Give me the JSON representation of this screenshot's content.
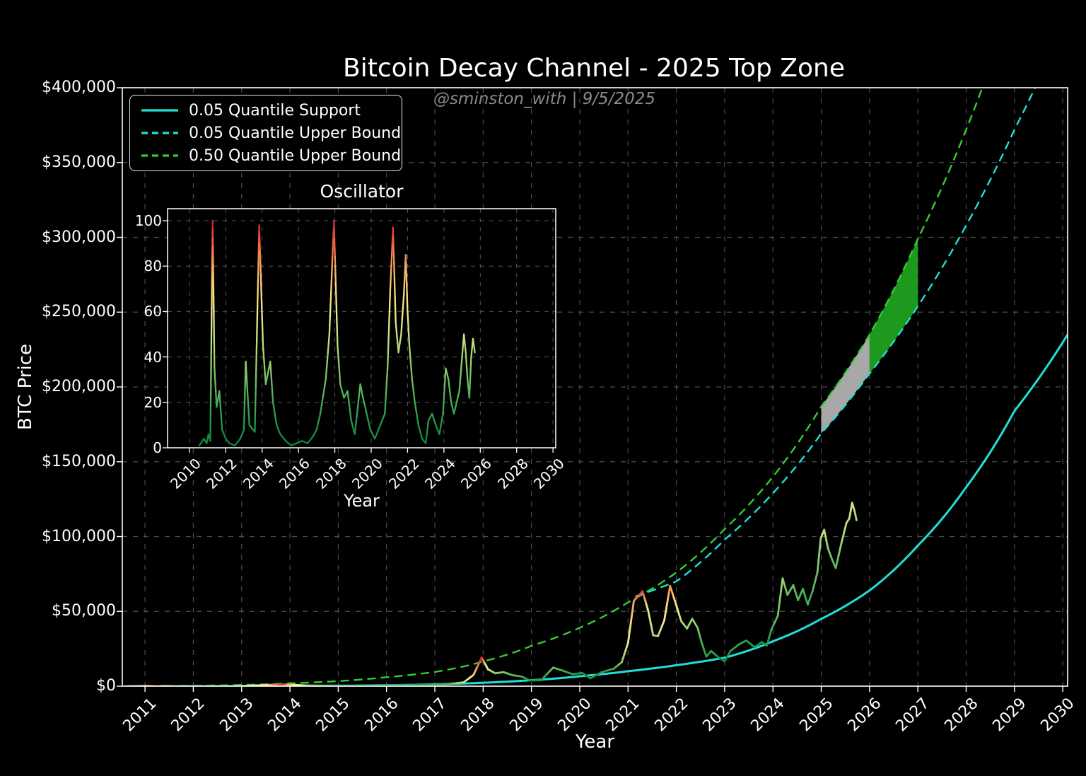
{
  "title": "Bitcoin Decay Channel - 2025 Top Zone",
  "watermark": "@sminston_with  |  9/5/2025",
  "legend": {
    "items": [
      {
        "label": "0.05 Quantile Support",
        "color": "#21dfda",
        "style": "solid"
      },
      {
        "label": "0.05 Quantile Upper Bound",
        "color": "#21dfda",
        "style": "dashed"
      },
      {
        "label": "0.50 Quantile Upper Bound",
        "color": "#33cd33",
        "style": "dashed"
      }
    ]
  },
  "colors": {
    "background": "#000000",
    "axis": "#ffffff",
    "grid": "#9b9b9b",
    "text": "#ffffff",
    "watermark_text": "#8a8a8a",
    "zone_elapsed_gray": "#a8a8a8",
    "zone_projected_green": "#1d9a1d"
  },
  "chart_data": {
    "main_chart": {
      "type": "line",
      "title": "Bitcoin Decay Channel - 2025 Top Zone",
      "xlabel": "Year",
      "ylabel": "BTC Price",
      "xlim": [
        2010.53,
        2030.1
      ],
      "ylim": [
        0,
        400000
      ],
      "grid": true,
      "x_ticks": [
        2011,
        2012,
        2013,
        2014,
        2015,
        2016,
        2017,
        2018,
        2019,
        2020,
        2021,
        2022,
        2023,
        2024,
        2025,
        2026,
        2027,
        2028,
        2029,
        2030
      ],
      "y_ticks": [
        {
          "value": 0,
          "label": "$0"
        },
        {
          "value": 50000,
          "label": "$50,000"
        },
        {
          "value": 100000,
          "label": "$100,000"
        },
        {
          "value": 150000,
          "label": "$150,000"
        },
        {
          "value": 200000,
          "label": "$200,000"
        },
        {
          "value": 250000,
          "label": "$250,000"
        },
        {
          "value": 300000,
          "label": "$300,000"
        },
        {
          "value": 350000,
          "label": "$350,000"
        },
        {
          "value": 400000,
          "label": "$400,000"
        }
      ],
      "value_unit": "USD thousands",
      "series": [
        {
          "name": "0.05 Quantile Support",
          "style": "solid",
          "color": "#21dfda",
          "width": 3,
          "points_year_usdK": [
            [
              2010.6,
              0.004
            ],
            [
              2011,
              0.008
            ],
            [
              2012,
              0.025
            ],
            [
              2013,
              0.07
            ],
            [
              2014,
              0.16
            ],
            [
              2015,
              0.32
            ],
            [
              2016,
              0.62
            ],
            [
              2017,
              1.2
            ],
            [
              2018,
              2.3
            ],
            [
              2019,
              4.0
            ],
            [
              2020,
              6.6
            ],
            [
              2021,
              10.0
            ],
            [
              2022,
              14.0
            ],
            [
              2023,
              19.0
            ],
            [
              2024,
              30.0
            ],
            [
              2025,
              45.0
            ],
            [
              2026,
              64.0
            ],
            [
              2027,
              94.0
            ],
            [
              2028,
              133.0
            ],
            [
              2029,
              184.0
            ],
            [
              2030.1,
              235.0
            ]
          ]
        },
        {
          "name": "0.05 Quantile Upper Bound",
          "style": "dashed",
          "color": "#21dfda",
          "width": 2.4,
          "points_year_usdK": [
            [
              2021.15,
              60.0
            ],
            [
              2022,
              70.0
            ],
            [
              2023,
              98.0
            ],
            [
              2024,
              129.0
            ],
            [
              2025,
              169.0
            ],
            [
              2026,
              209.0
            ],
            [
              2027,
              254.0
            ],
            [
              2028,
              308.0
            ],
            [
              2029,
              372.0
            ],
            [
              2029.6,
              412.0
            ]
          ]
        },
        {
          "name": "0.50 Quantile Upper Bound",
          "style": "dashed",
          "color": "#33cd33",
          "width": 2.4,
          "points_year_usdK": [
            [
              2010.6,
              0.06
            ],
            [
              2011,
              0.09
            ],
            [
              2012,
              0.3
            ],
            [
              2013,
              0.85
            ],
            [
              2014,
              1.9
            ],
            [
              2015,
              3.4
            ],
            [
              2016,
              6.0
            ],
            [
              2017,
              9.5
            ],
            [
              2018,
              16.5
            ],
            [
              2019,
              27.0
            ],
            [
              2020,
              39.0
            ],
            [
              2021,
              56.0
            ],
            [
              2022,
              76.0
            ],
            [
              2023,
              105.0
            ],
            [
              2024,
              140.0
            ],
            [
              2025,
              187.0
            ],
            [
              2026,
              235.0
            ],
            [
              2027,
              299.0
            ],
            [
              2028,
              372.0
            ],
            [
              2028.45,
              410.0
            ]
          ]
        },
        {
          "name": "BTC Price",
          "style": "gradient-colormap",
          "width": 2.8,
          "points_year_usdK_osc": [
            [
              2010.6,
              0.01,
              3
            ],
            [
              2011.28,
              0.03,
              100
            ],
            [
              2011.6,
              0.01,
              15
            ],
            [
              2012.5,
              0.01,
              3
            ],
            [
              2013.1,
              0.2,
              38
            ],
            [
              2013.84,
              1.15,
              98
            ],
            [
              2014.4,
              0.45,
              30
            ],
            [
              2015.2,
              0.25,
              5
            ],
            [
              2016.0,
              0.43,
              6
            ],
            [
              2016.7,
              0.68,
              12
            ],
            [
              2017.2,
              1.1,
              22
            ],
            [
              2017.6,
              2.6,
              45
            ],
            [
              2017.8,
              7.5,
              70
            ],
            [
              2017.97,
              19.2,
              100
            ],
            [
              2018.1,
              11.3,
              55
            ],
            [
              2018.25,
              8.6,
              38
            ],
            [
              2018.42,
              9.4,
              35
            ],
            [
              2018.6,
              7.4,
              28
            ],
            [
              2018.8,
              6.4,
              22
            ],
            [
              2018.97,
              3.8,
              10
            ],
            [
              2019.2,
              4.0,
              10
            ],
            [
              2019.45,
              12.4,
              28
            ],
            [
              2019.62,
              10.7,
              22
            ],
            [
              2019.85,
              8.0,
              14
            ],
            [
              2020.05,
              8.8,
              12
            ],
            [
              2020.22,
              5.2,
              6
            ],
            [
              2020.45,
              9.3,
              12
            ],
            [
              2020.7,
              11.6,
              18
            ],
            [
              2020.87,
              16.0,
              32
            ],
            [
              2021.0,
              29.0,
              55
            ],
            [
              2021.12,
              57.0,
              82
            ],
            [
              2021.3,
              63.5,
              97
            ],
            [
              2021.42,
              50.0,
              58
            ],
            [
              2021.52,
              34.0,
              44
            ],
            [
              2021.62,
              33.5,
              45
            ],
            [
              2021.75,
              44.0,
              58
            ],
            [
              2021.87,
              67.0,
              85
            ],
            [
              2021.97,
              57.0,
              68
            ],
            [
              2022.1,
              43.5,
              46
            ],
            [
              2022.22,
              38.5,
              38
            ],
            [
              2022.33,
              45.0,
              42
            ],
            [
              2022.44,
              39.0,
              33
            ],
            [
              2022.52,
              29.5,
              22
            ],
            [
              2022.62,
              19.8,
              13
            ],
            [
              2022.72,
              23.5,
              17
            ],
            [
              2022.87,
              19.3,
              11
            ],
            [
              2023.0,
              16.6,
              4
            ],
            [
              2023.12,
              23.5,
              14
            ],
            [
              2023.3,
              28.0,
              17
            ],
            [
              2023.45,
              30.5,
              15
            ],
            [
              2023.62,
              26.0,
              11
            ],
            [
              2023.77,
              29.5,
              12
            ],
            [
              2023.87,
              27.0,
              9
            ],
            [
              2023.97,
              38.0,
              18
            ],
            [
              2024.1,
              47.0,
              28
            ],
            [
              2024.2,
              72.0,
              40
            ],
            [
              2024.3,
              61.0,
              27
            ],
            [
              2024.42,
              67.5,
              30
            ],
            [
              2024.52,
              57.5,
              21
            ],
            [
              2024.62,
              65.0,
              24
            ],
            [
              2024.72,
              54.5,
              17
            ],
            [
              2024.82,
              63.5,
              22
            ],
            [
              2024.92,
              76.0,
              30
            ],
            [
              2024.99,
              99.0,
              42
            ],
            [
              2025.06,
              104.5,
              48
            ],
            [
              2025.14,
              92.0,
              36
            ],
            [
              2025.22,
              85.0,
              29
            ],
            [
              2025.3,
              79.0,
              24
            ],
            [
              2025.42,
              96.0,
              40
            ],
            [
              2025.52,
              109.0,
              47
            ],
            [
              2025.58,
              112.0,
              49
            ],
            [
              2025.64,
              122.5,
              52
            ],
            [
              2025.69,
              117.0,
              46
            ],
            [
              2025.73,
              111.0,
              43
            ]
          ]
        }
      ],
      "zones": [
        {
          "name": "2025 top zone - elapsed",
          "from_year": 2025,
          "to_year": 2026,
          "upper_series": "0.50 Quantile Upper Bound",
          "lower_series": "0.05 Quantile Upper Bound",
          "color": "#a8a8a8"
        },
        {
          "name": "2025 top zone - projected",
          "from_year": 2026,
          "to_year": 2027,
          "upper_series": "0.50 Quantile Upper Bound",
          "lower_series": "0.05 Quantile Upper Bound",
          "color": "#1d9a1d"
        }
      ],
      "colormap_rdylgn_reversed": [
        [
          0,
          "#0e8040"
        ],
        [
          12,
          "#25994c"
        ],
        [
          25,
          "#5ab55c"
        ],
        [
          38,
          "#97cf70"
        ],
        [
          50,
          "#cde485"
        ],
        [
          60,
          "#eeee8e"
        ],
        [
          70,
          "#fbd77b"
        ],
        [
          80,
          "#fba85e"
        ],
        [
          90,
          "#ee6243"
        ],
        [
          97,
          "#d63230"
        ],
        [
          100,
          "#b2202b"
        ]
      ]
    },
    "oscillator_inset": {
      "type": "line",
      "title": "Oscillator",
      "xlabel": "Year",
      "xlim": [
        2008.8,
        2030.15
      ],
      "ylim": [
        0,
        105.3
      ],
      "grid": true,
      "x_ticks": [
        2010,
        2012,
        2014,
        2016,
        2018,
        2020,
        2022,
        2024,
        2026,
        2028,
        2030
      ],
      "y_ticks": [
        0,
        20,
        40,
        60,
        80,
        100
      ],
      "points_year_value": [
        [
          2010.55,
          1
        ],
        [
          2010.8,
          4
        ],
        [
          2010.95,
          2
        ],
        [
          2011.05,
          6
        ],
        [
          2011.15,
          3
        ],
        [
          2011.28,
          100
        ],
        [
          2011.38,
          35
        ],
        [
          2011.5,
          18
        ],
        [
          2011.65,
          25
        ],
        [
          2011.8,
          8
        ],
        [
          2012.0,
          4
        ],
        [
          2012.2,
          2
        ],
        [
          2012.5,
          1
        ],
        [
          2012.8,
          4
        ],
        [
          2013.0,
          8
        ],
        [
          2013.1,
          38
        ],
        [
          2013.3,
          10
        ],
        [
          2013.6,
          7
        ],
        [
          2013.84,
          98
        ],
        [
          2014.05,
          45
        ],
        [
          2014.2,
          28
        ],
        [
          2014.45,
          38
        ],
        [
          2014.6,
          20
        ],
        [
          2014.8,
          10
        ],
        [
          2015.0,
          6
        ],
        [
          2015.3,
          3
        ],
        [
          2015.6,
          1
        ],
        [
          2015.9,
          2
        ],
        [
          2016.2,
          3
        ],
        [
          2016.5,
          2
        ],
        [
          2016.8,
          5
        ],
        [
          2017.0,
          8
        ],
        [
          2017.2,
          15
        ],
        [
          2017.5,
          30
        ],
        [
          2017.7,
          50
        ],
        [
          2017.95,
          100
        ],
        [
          2018.15,
          45
        ],
        [
          2018.3,
          28
        ],
        [
          2018.5,
          22
        ],
        [
          2018.7,
          25
        ],
        [
          2018.9,
          12
        ],
        [
          2019.1,
          6
        ],
        [
          2019.4,
          28
        ],
        [
          2019.55,
          22
        ],
        [
          2019.75,
          15
        ],
        [
          2019.95,
          8
        ],
        [
          2020.2,
          4
        ],
        [
          2020.5,
          10
        ],
        [
          2020.75,
          15
        ],
        [
          2020.9,
          35
        ],
        [
          2021.05,
          70
        ],
        [
          2021.2,
          97
        ],
        [
          2021.35,
          55
        ],
        [
          2021.5,
          42
        ],
        [
          2021.65,
          50
        ],
        [
          2021.8,
          68
        ],
        [
          2021.9,
          85
        ],
        [
          2022.0,
          60
        ],
        [
          2022.1,
          45
        ],
        [
          2022.25,
          30
        ],
        [
          2022.4,
          20
        ],
        [
          2022.6,
          10
        ],
        [
          2022.8,
          4
        ],
        [
          2023.0,
          2
        ],
        [
          2023.15,
          12
        ],
        [
          2023.35,
          15
        ],
        [
          2023.55,
          10
        ],
        [
          2023.75,
          6
        ],
        [
          2023.95,
          15
        ],
        [
          2024.1,
          35
        ],
        [
          2024.25,
          30
        ],
        [
          2024.4,
          20
        ],
        [
          2024.55,
          15
        ],
        [
          2024.7,
          20
        ],
        [
          2024.85,
          25
        ],
        [
          2025.0,
          40
        ],
        [
          2025.1,
          50
        ],
        [
          2025.2,
          42
        ],
        [
          2025.3,
          30
        ],
        [
          2025.4,
          22
        ],
        [
          2025.5,
          40
        ],
        [
          2025.6,
          48
        ],
        [
          2025.7,
          42
        ]
      ]
    }
  }
}
